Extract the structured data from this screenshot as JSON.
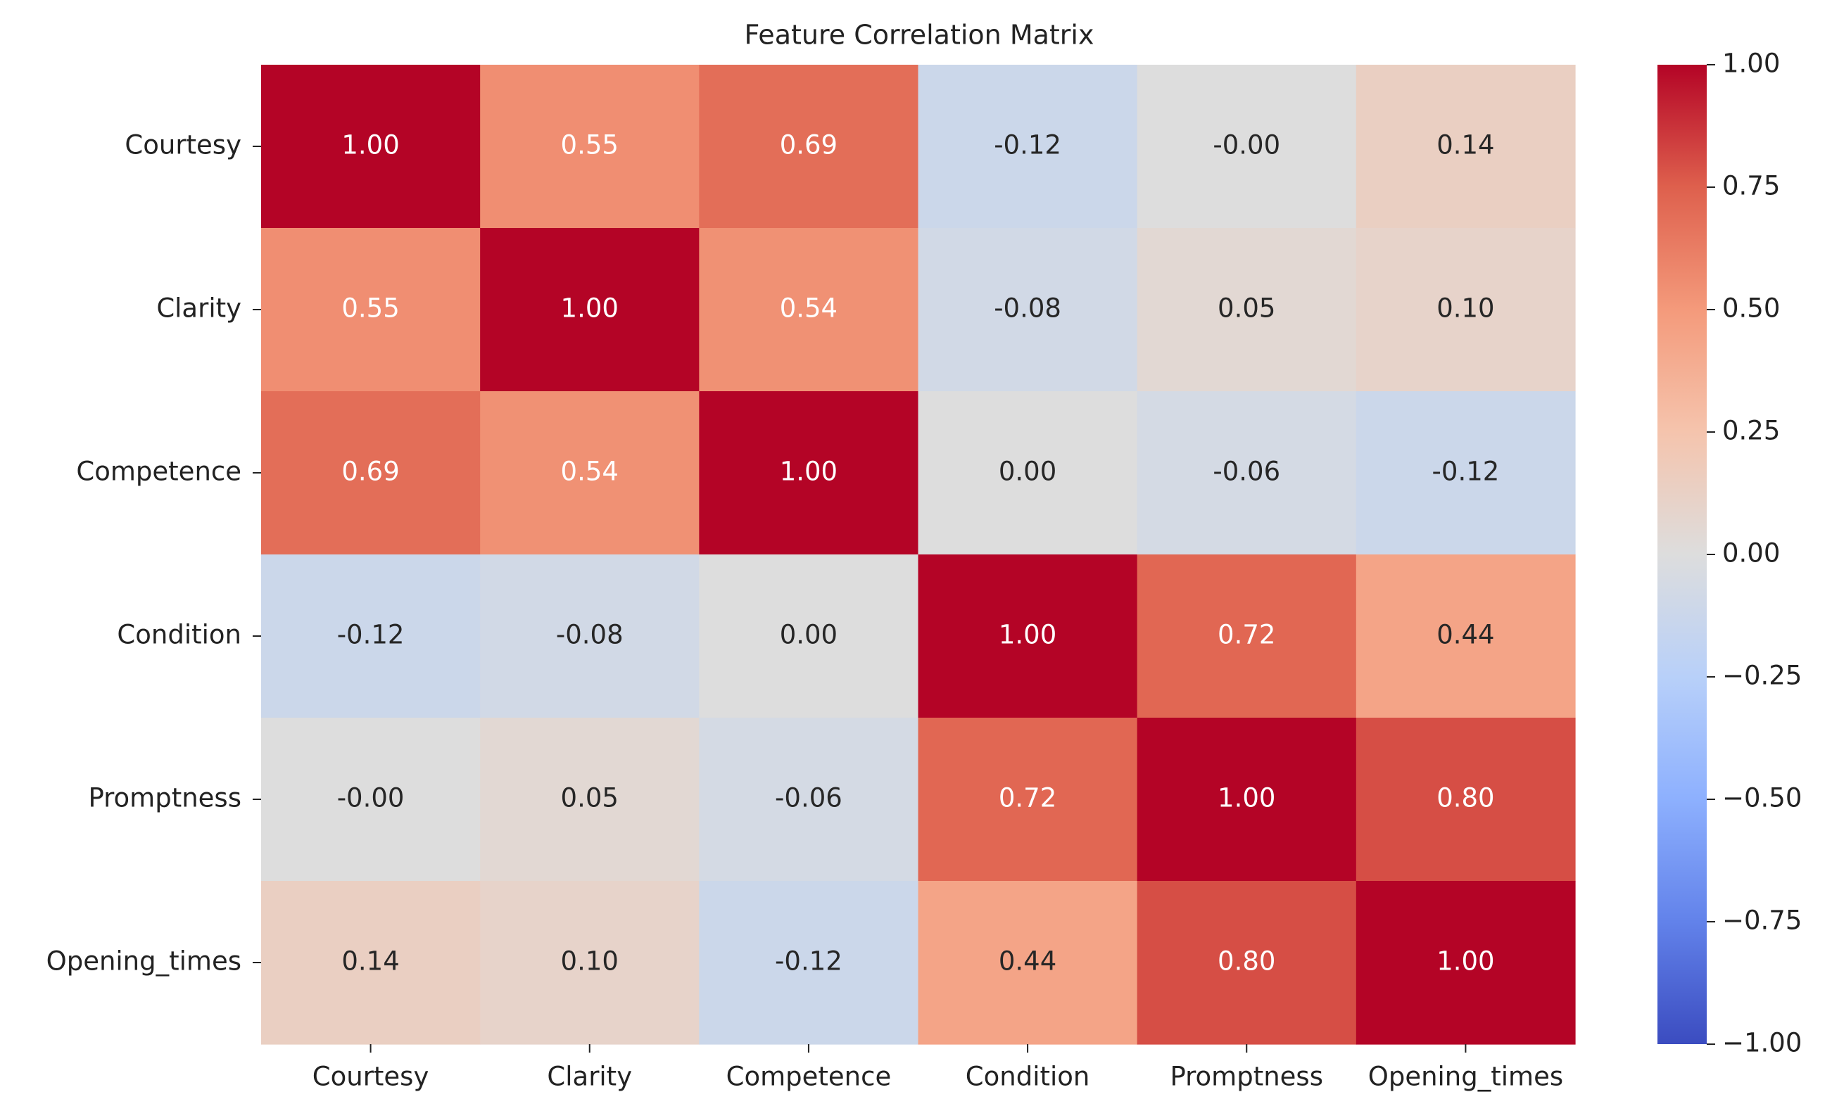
{
  "chart_data": {
    "type": "heatmap",
    "title": "Feature Correlation Matrix",
    "xlabel": "",
    "ylabel": "",
    "x_categories": [
      "Courtesy",
      "Clarity",
      "Competence",
      "Condition",
      "Promptness",
      "Opening_times"
    ],
    "y_categories": [
      "Courtesy",
      "Clarity",
      "Competence",
      "Condition",
      "Promptness",
      "Opening_times"
    ],
    "values": [
      [
        1.0,
        0.55,
        0.69,
        -0.12,
        -0.0,
        0.14
      ],
      [
        0.55,
        1.0,
        0.54,
        -0.08,
        0.05,
        0.1
      ],
      [
        0.69,
        0.54,
        1.0,
        0.0,
        -0.06,
        -0.12
      ],
      [
        -0.12,
        -0.08,
        0.0,
        1.0,
        0.72,
        0.44
      ],
      [
        -0.0,
        0.05,
        -0.06,
        0.72,
        1.0,
        0.8
      ],
      [
        0.14,
        0.1,
        -0.12,
        0.44,
        0.8,
        1.0
      ]
    ],
    "cell_labels": [
      [
        "1.00",
        "0.55",
        "0.69",
        "-0.12",
        "-0.00",
        "0.14"
      ],
      [
        "0.55",
        "1.00",
        "0.54",
        "-0.08",
        "0.05",
        "0.10"
      ],
      [
        "0.69",
        "0.54",
        "1.00",
        "0.00",
        "-0.06",
        "-0.12"
      ],
      [
        "-0.12",
        "-0.08",
        "0.00",
        "1.00",
        "0.72",
        "0.44"
      ],
      [
        "-0.00",
        "0.05",
        "-0.06",
        "0.72",
        "1.00",
        "0.80"
      ],
      [
        "0.14",
        "0.10",
        "-0.12",
        "0.44",
        "0.80",
        "1.00"
      ]
    ],
    "colorbar": {
      "range": [
        -1.0,
        1.0
      ],
      "ticks": [
        1.0,
        0.75,
        0.5,
        0.25,
        0.0,
        -0.25,
        -0.5,
        -0.75,
        -1.0
      ],
      "tick_labels": [
        "1.00",
        "0.75",
        "0.50",
        "0.25",
        "0.00",
        "−0.25",
        "−0.50",
        "−0.75",
        "−1.00"
      ],
      "colormap": "coolwarm",
      "low_color": "#3b4cc0",
      "mid_color": "#dddddd",
      "high_color": "#b40426"
    },
    "grid": false
  }
}
